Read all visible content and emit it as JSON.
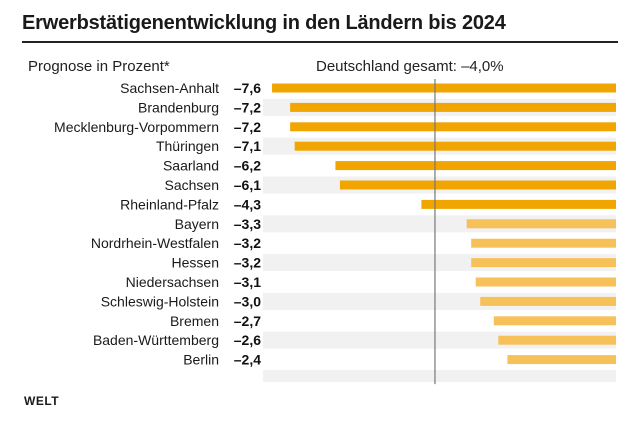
{
  "title": "Erwerbstätigenentwicklung in den Ländern bis 2024",
  "subtitle_left": "Prognose in Prozent*",
  "subtitle_right": "Deutschland gesamt: –4,0%",
  "logo": "WELT",
  "colors": {
    "bar_dark": "#f0a500",
    "bar_light": "#f7c15a",
    "row_bg": "#f1f1f1",
    "reference_line": "#777777"
  },
  "chart_data": {
    "type": "bar",
    "orientation": "horizontal",
    "reference_value": -4.0,
    "categories": [
      "Sachsen-Anhalt",
      "Brandenburg",
      "Mecklenburg-Vorpommern",
      "Thüringen",
      "Saarland",
      "Sachsen",
      "Rheinland-Pfalz",
      "Bayern",
      "Nordrhein-Westfalen",
      "Hessen",
      "Niedersachsen",
      "Schleswig-Holstein",
      "Bremen",
      "Baden-Württemberg",
      "Berlin"
    ],
    "values": [
      -7.6,
      -7.2,
      -7.2,
      -7.1,
      -6.2,
      -6.1,
      -4.3,
      -3.3,
      -3.2,
      -3.2,
      -3.1,
      -3.0,
      -2.7,
      -2.6,
      -2.4
    ],
    "value_labels": [
      "–7,6",
      "–7,2",
      "–7,2",
      "–7,1",
      "–6,2",
      "–6,1",
      "–4,3",
      "–3,3",
      "–3,2",
      "–3,2",
      "–3,1",
      "–3,0",
      "–2,7",
      "–2,6",
      "–2,4"
    ],
    "xlim": [
      -7.8,
      0
    ],
    "title": "Erwerbstätigenentwicklung in den Ländern bis 2024",
    "xlabel": "",
    "ylabel": ""
  }
}
